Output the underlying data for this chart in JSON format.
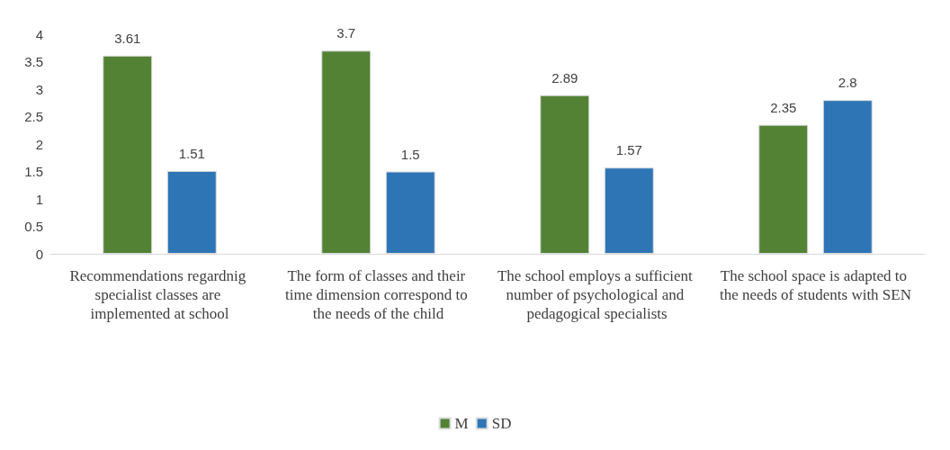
{
  "chart_data": {
    "type": "bar",
    "categories": [
      "Recommendations regardnig specialist classes are implemented at school",
      "The form of classes and their time dimension correspond to the needs of the child",
      "The school employs a sufficient number of psychological and pedagogical specialists",
      "The school space is adapted to the needs of students with SEN"
    ],
    "series": [
      {
        "name": "M",
        "color": "#548235",
        "values": [
          3.61,
          3.7,
          2.89,
          2.35
        ]
      },
      {
        "name": "SD",
        "color": "#2e75b6",
        "values": [
          1.51,
          1.5,
          1.57,
          2.8
        ]
      }
    ],
    "ylim": [
      0,
      4
    ],
    "yticks": [
      0,
      0.5,
      1,
      1.5,
      2,
      2.5,
      3,
      3.5,
      4
    ],
    "grid": false,
    "legend": "bottom",
    "data_labels": true
  }
}
